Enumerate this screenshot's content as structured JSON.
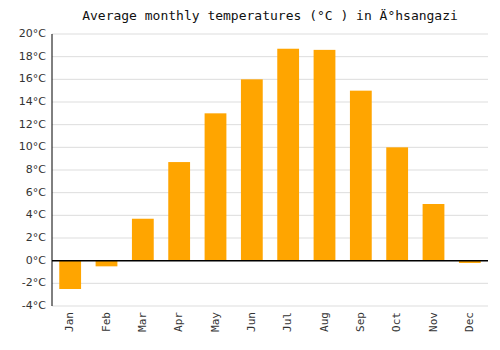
{
  "chart_data": {
    "type": "bar",
    "title": "Average monthly temperatures (°C ) in Ä°hsangazi",
    "categories": [
      "Jan",
      "Feb",
      "Mar",
      "Apr",
      "May",
      "Jun",
      "Jul",
      "Aug",
      "Sep",
      "Oct",
      "Nov",
      "Dec"
    ],
    "values": [
      -2.5,
      -0.5,
      3.7,
      8.7,
      13.0,
      16.0,
      18.7,
      18.6,
      15.0,
      10.0,
      5.0,
      -0.2
    ],
    "color": "#FFA500",
    "ylim": [
      -4,
      20
    ],
    "yticks": [
      {
        "value": -4,
        "label": "-4°C"
      },
      {
        "value": -2,
        "label": "-2°C"
      },
      {
        "value": 0,
        "label": "0°C"
      },
      {
        "value": 2,
        "label": "2°C"
      },
      {
        "value": 4,
        "label": "4°C"
      },
      {
        "value": 6,
        "label": "6°C"
      },
      {
        "value": 8,
        "label": "8°C"
      },
      {
        "value": 10,
        "label": "10°C"
      },
      {
        "value": 12,
        "label": "12°C"
      },
      {
        "value": 14,
        "label": "14°C"
      },
      {
        "value": 16,
        "label": "16°C"
      },
      {
        "value": 18,
        "label": "18°C"
      },
      {
        "value": 20,
        "label": "20°C"
      }
    ],
    "grid": true
  }
}
